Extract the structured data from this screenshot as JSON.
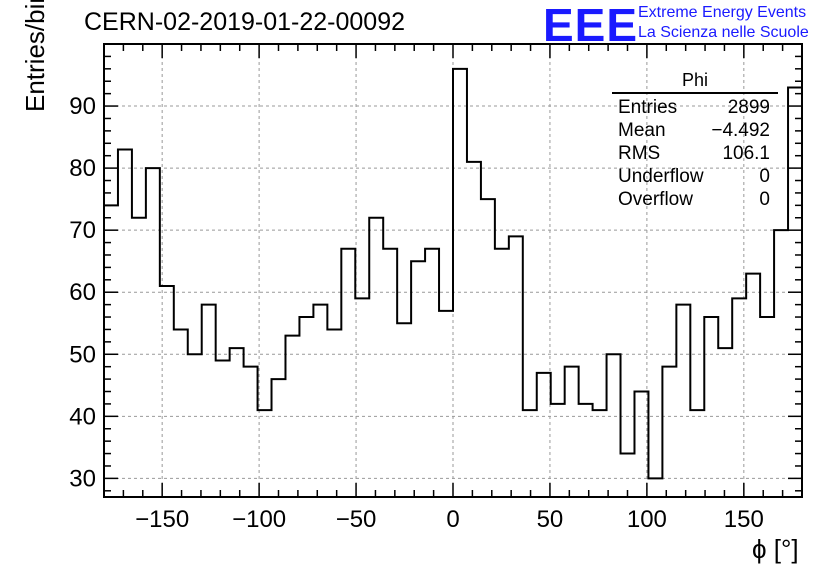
{
  "header": {
    "title": "CERN-02-2019-01-22-00092",
    "logo_text": "EEE",
    "logo_line1": "Extreme Energy Events",
    "logo_line2": "La Scienza nelle Scuole"
  },
  "stats_box": {
    "name": "Phi",
    "rows": [
      {
        "label": "Entries",
        "value": "2899"
      },
      {
        "label": "Mean",
        "value": "−4.492"
      },
      {
        "label": "RMS",
        "value": "106.1"
      },
      {
        "label": "Underflow",
        "value": "0"
      },
      {
        "label": "Overflow",
        "value": "0"
      }
    ]
  },
  "chart_data": {
    "type": "histogram",
    "title": "CERN-02-2019-01-22-00092",
    "xlabel": "ϕ [°]",
    "ylabel": "Entries/bin",
    "xlim": [
      -180,
      180
    ],
    "ylim": [
      27,
      100
    ],
    "bin_width": 7.2,
    "grid": true,
    "x_ticks": [
      -150,
      -100,
      -50,
      0,
      50,
      100,
      150
    ],
    "x_tick_labels": [
      "−150",
      "−100",
      "−50",
      "0",
      "50",
      "100",
      "150"
    ],
    "y_ticks": [
      30,
      40,
      50,
      60,
      70,
      80,
      90
    ],
    "y_tick_labels": [
      "30",
      "40",
      "50",
      "60",
      "70",
      "80",
      "90"
    ],
    "bin_edges_start": -180,
    "values": [
      74,
      83,
      72,
      80,
      61,
      54,
      50,
      58,
      49,
      51,
      48,
      41,
      46,
      53,
      56,
      58,
      54,
      67,
      59,
      72,
      67,
      55,
      65,
      67,
      57,
      96,
      81,
      75,
      67,
      69,
      41,
      47,
      42,
      48,
      42,
      41,
      50,
      34,
      44,
      30,
      48,
      58,
      41,
      56,
      51,
      59,
      63,
      56,
      70,
      93
    ],
    "colors": {
      "line": "#000000",
      "grid": "#999999"
    }
  }
}
